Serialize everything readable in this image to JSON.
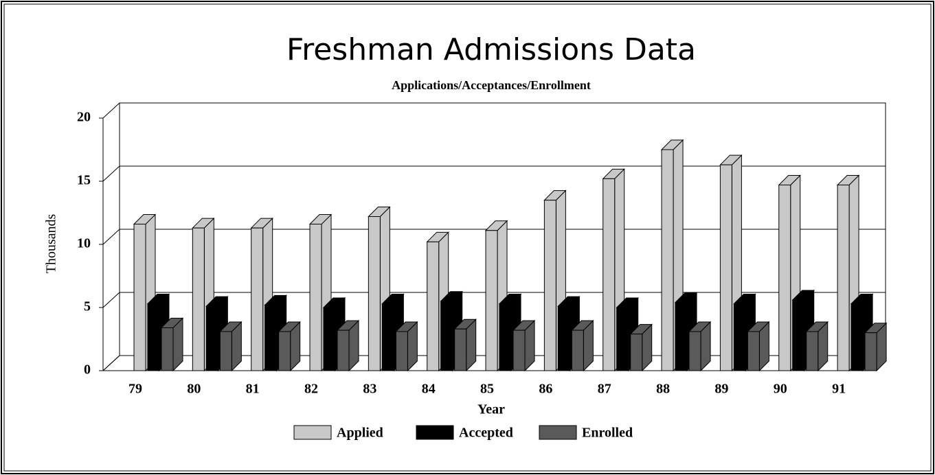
{
  "chart_data": {
    "type": "bar3d",
    "title": "Freshman Admissions Data",
    "subtitle": "Applications/Acceptances/Enrollment",
    "x_label": "Year",
    "y_label": "Thousands",
    "categories": [
      "79",
      "80",
      "81",
      "82",
      "83",
      "84",
      "85",
      "86",
      "87",
      "88",
      "89",
      "90",
      "91"
    ],
    "series": [
      {
        "name": "Applied",
        "color": "#c8c8c8",
        "values": [
          11.6,
          11.3,
          11.3,
          11.6,
          12.2,
          10.2,
          11.1,
          13.5,
          15.2,
          17.5,
          16.3,
          14.7,
          14.7
        ]
      },
      {
        "name": "Accepted",
        "color": "#000000",
        "values": [
          5.3,
          5.1,
          5.2,
          5.0,
          5.3,
          5.5,
          5.3,
          5.1,
          5.0,
          5.4,
          5.3,
          5.6,
          5.3
        ]
      },
      {
        "name": "Enrolled",
        "color": "#5a5a5a",
        "values": [
          3.4,
          3.1,
          3.1,
          3.2,
          3.1,
          3.3,
          3.2,
          3.2,
          2.9,
          3.1,
          3.1,
          3.1,
          3.0
        ]
      }
    ],
    "ylim": [
      0,
      20
    ],
    "yticks": [
      0,
      5,
      10,
      15,
      20
    ],
    "grid": true,
    "legend": "bottom"
  }
}
